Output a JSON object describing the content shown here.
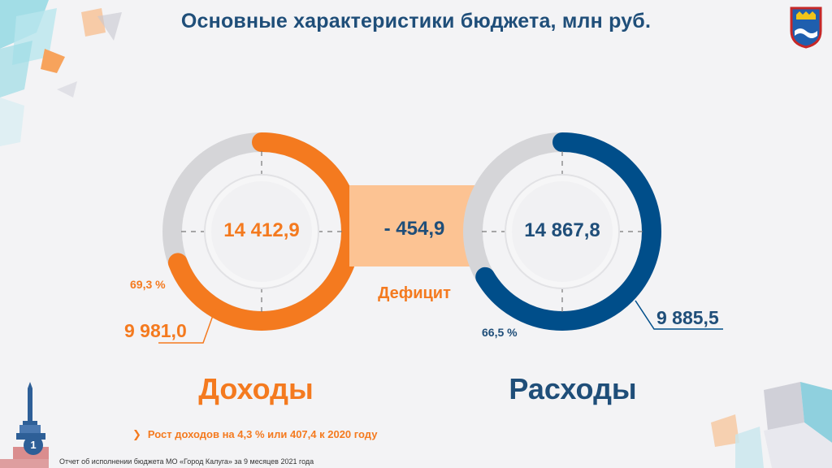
{
  "title": "Основные характеристики бюджета, млн руб.",
  "income": {
    "label": "Доходы",
    "plan": "14 412,9",
    "actual": "9 981,0",
    "percent": "69,3 %",
    "fraction": 0.693,
    "color": "#f47a1f"
  },
  "expense": {
    "label": "Расходы",
    "plan": "14 867,8",
    "actual": "9 885,5",
    "percent": "66,5 %",
    "fraction": 0.665,
    "color": "#004e8a"
  },
  "deficit": {
    "value": "- 454,9",
    "label": "Дефицит"
  },
  "growth_note": "Рост доходов на 4,3 % или 407,4 к 2020 году",
  "footer": "Отчет об исполнении бюджета МО «Город Калуга» за 9 месяцев 2021 года",
  "page_number": "1",
  "icons": [
    "chevron-right-icon",
    "city-emblem-icon",
    "monument-icon"
  ]
}
